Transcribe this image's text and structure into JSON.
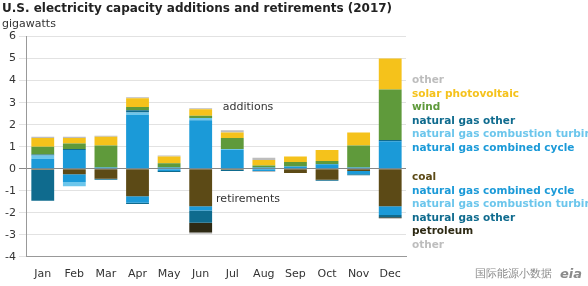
{
  "chart_data": {
    "type": "bar",
    "title": "U.S. electricity capacity additions and retirements (2017)",
    "subtitle": "gigawatts",
    "annotations": [
      "additions",
      "retirements"
    ],
    "watermark": [
      "国际能源小数据",
      "eia"
    ],
    "categories": [
      "Jan",
      "Feb",
      "Mar",
      "Apr",
      "May",
      "Jun",
      "Jul",
      "Aug",
      "Sep",
      "Oct",
      "Nov",
      "Dec"
    ],
    "stacked": true,
    "grid": true,
    "legend": "right",
    "ylim": [
      -4,
      6
    ],
    "yticks": [
      -4,
      -3,
      -2,
      -1,
      0,
      1,
      2,
      3,
      4,
      5,
      6
    ],
    "series": [
      {
        "name": "natural gas combined cycle",
        "color": "#1b9ad8",
        "values": [
          0.45,
          0.85,
          0.05,
          2.45,
          0.05,
          2.2,
          0.85,
          0.05,
          0.1,
          0.2,
          0.05,
          1.25
        ]
      },
      {
        "name": "natural gas combustion turbine",
        "color": "#6cc6ec",
        "values": [
          0.15,
          0,
          0,
          0.1,
          0,
          0.1,
          0.05,
          0,
          0,
          0,
          0,
          0
        ]
      },
      {
        "name": "natural gas other",
        "color": "#0f6b8e",
        "values": [
          0.05,
          0.05,
          0,
          0.1,
          0,
          0,
          0,
          0,
          0,
          0,
          0,
          0.05
        ]
      },
      {
        "name": "wind",
        "color": "#5f9a3b",
        "values": [
          0.35,
          0.25,
          1.0,
          0.15,
          0.2,
          0.1,
          0.5,
          0.1,
          0.2,
          0.15,
          1.0,
          2.3
        ]
      },
      {
        "name": "solar photovoltaic",
        "color": "#f5c21b",
        "values": [
          0.4,
          0.25,
          0.4,
          0.4,
          0.3,
          0.3,
          0.25,
          0.25,
          0.25,
          0.5,
          0.6,
          1.4
        ]
      },
      {
        "name": "other",
        "color": "#bdbdbd",
        "values": [
          0.05,
          0.05,
          0.05,
          0.05,
          0.05,
          0.05,
          0.1,
          0.1,
          0,
          0,
          0,
          0
        ]
      },
      {
        "name": "coal",
        "color": "#5c4a16",
        "values": [
          -0.05,
          -0.25,
          -0.45,
          -1.25,
          0,
          -1.7,
          -0.05,
          0,
          -0.2,
          -0.5,
          -0.1,
          -1.7
        ]
      },
      {
        "name": "natural gas combined cycle",
        "color": "#1b9ad8",
        "values": [
          0,
          -0.35,
          0,
          -0.3,
          -0.1,
          -0.2,
          0,
          -0.1,
          0,
          0,
          -0.15,
          -0.4
        ]
      },
      {
        "name": "natural gas combustion turbine",
        "color": "#6cc6ec",
        "values": [
          0,
          -0.2,
          0,
          0,
          0,
          0,
          0,
          0,
          0,
          0,
          0,
          0
        ]
      },
      {
        "name": "natural gas other",
        "color": "#0f6b8e",
        "values": [
          -1.4,
          0,
          -0.05,
          -0.05,
          -0.05,
          -0.55,
          -0.05,
          0,
          0,
          -0.05,
          -0.05,
          -0.1
        ]
      },
      {
        "name": "petroleum",
        "color": "#2e2a14",
        "values": [
          0,
          0,
          0,
          0,
          0,
          -0.45,
          0,
          0,
          0,
          0,
          0,
          -0.05
        ]
      },
      {
        "name": "other",
        "color": "#bdbdbd",
        "values": [
          0,
          0,
          0,
          0,
          0,
          -0.05,
          0,
          -0.05,
          0,
          0,
          0,
          0
        ]
      }
    ]
  }
}
